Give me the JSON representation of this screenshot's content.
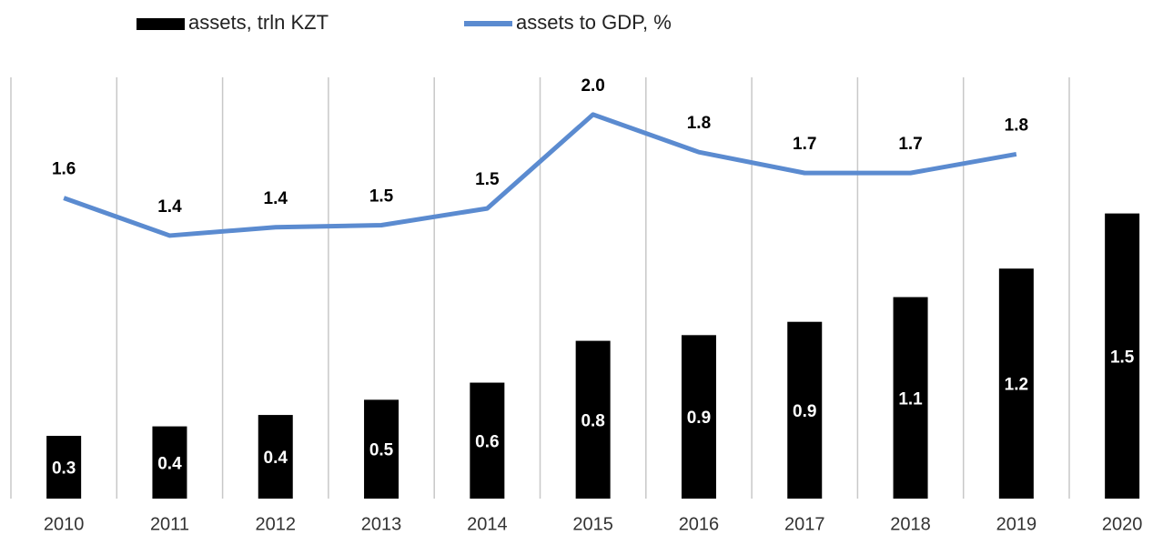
{
  "chart_data": {
    "type": "bar-line",
    "categories": [
      "2010",
      "2011",
      "2012",
      "2013",
      "2014",
      "2015",
      "2016",
      "2017",
      "2018",
      "2019",
      "2020"
    ],
    "series": [
      {
        "name": "assets, trln KZT",
        "type": "bar",
        "color": "#000000",
        "values": [
          0.33,
          0.38,
          0.44,
          0.52,
          0.61,
          0.83,
          0.86,
          0.93,
          1.06,
          1.21,
          1.5
        ],
        "value_labels": [
          "0.3",
          "0.4",
          "0.4",
          "0.5",
          "0.6",
          "0.8",
          "0.9",
          "0.9",
          "1.1",
          "1.2",
          "1.5"
        ]
      },
      {
        "name": "assets to GDP, %",
        "type": "line",
        "axis": "y2",
        "color": "#5b8bd0",
        "values": [
          1.58,
          1.4,
          1.44,
          1.45,
          1.53,
          1.98,
          1.8,
          1.7,
          1.7,
          1.79,
          null
        ],
        "value_labels": [
          "1.6",
          "1.4",
          "1.4",
          "1.5",
          "1.5",
          "2.0",
          "1.8",
          "1.7",
          "1.7",
          "1.8",
          null
        ]
      }
    ],
    "ylim": [
      0,
      2.24
    ],
    "y2lim": [
      0.14,
      2.18
    ],
    "legend": "top"
  }
}
